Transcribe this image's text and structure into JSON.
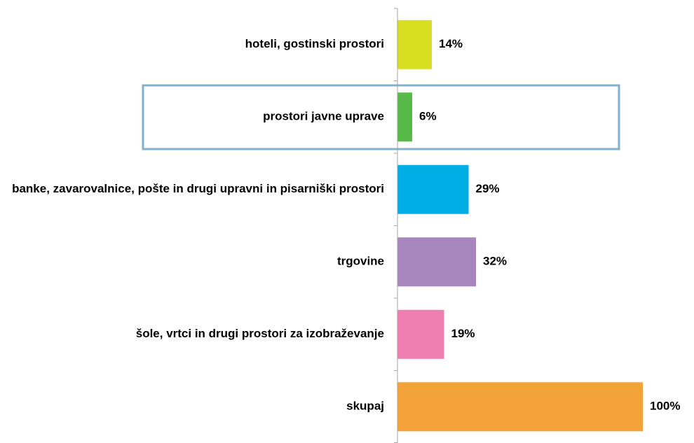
{
  "chart_data": {
    "type": "barh",
    "categories": [
      "hoteli, gostinski prostori",
      "prostori javne uprave",
      "banke, zavarovalnice, pošte in drugi upravni in pisarniški prostori",
      "trgovine",
      "šole, vrtci in drugi prostori za izobraževanje",
      "skupaj"
    ],
    "values": [
      14,
      6,
      29,
      32,
      19,
      100
    ],
    "value_labels": [
      "14%",
      "6%",
      "29%",
      "32%",
      "19%",
      "100%"
    ],
    "colors": [
      "#d7df23",
      "#57b947",
      "#00aee5",
      "#a686bd",
      "#ef7fb0",
      "#f4a23a"
    ],
    "xlim": [
      0,
      100
    ]
  }
}
